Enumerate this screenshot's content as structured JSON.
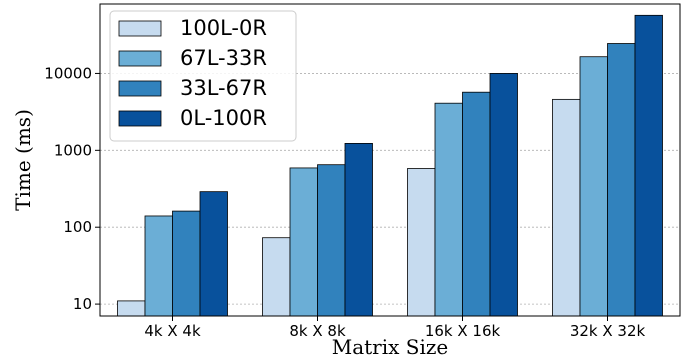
{
  "chart_data": {
    "type": "bar",
    "title": "",
    "xlabel": "Matrix Size",
    "ylabel": "Time (ms)",
    "yscale": "log",
    "ylim": [
      7,
      80000
    ],
    "yticks": [
      10,
      100,
      1000,
      10000
    ],
    "ytick_labels": [
      "10",
      "100",
      "1000",
      "10000"
    ],
    "grid": "y-major-dotted",
    "legend_position": "upper-left",
    "categories": [
      "4k X 4k",
      "8k X 8k",
      "16k X 16k",
      "32k X 32k"
    ],
    "series": [
      {
        "name": "100L-0R",
        "color": "#c6dbef",
        "values": [
          11,
          73,
          580,
          4600
        ]
      },
      {
        "name": "67L-33R",
        "color": "#6baed6",
        "values": [
          140,
          590,
          4100,
          16500
        ]
      },
      {
        "name": "33L-67R",
        "color": "#3182bd",
        "values": [
          162,
          650,
          5700,
          24500
        ]
      },
      {
        "name": "0L-100R",
        "color": "#08519c",
        "values": [
          290,
          1230,
          10000,
          57000
        ]
      }
    ]
  }
}
